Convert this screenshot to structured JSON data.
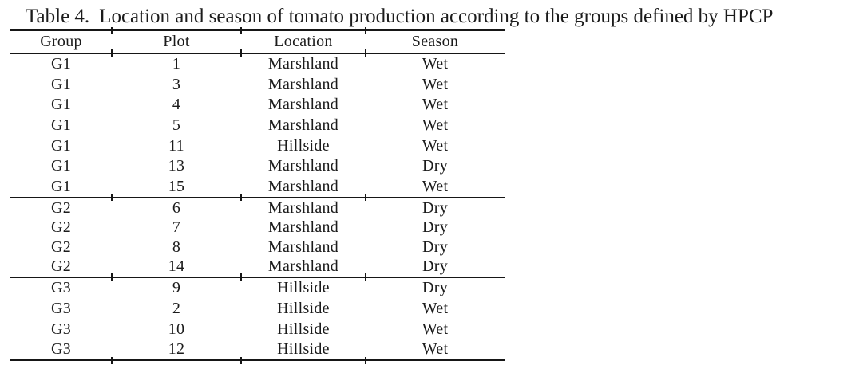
{
  "caption": {
    "label": "Table 4.",
    "text": "Location and season of tomato production according to the groups defined by HPCP"
  },
  "table": {
    "columns": [
      "Group",
      "Plot",
      "Location",
      "Season"
    ],
    "rows": [
      {
        "group": "G1",
        "plot": "1",
        "location": "Marshland",
        "season": "Wet"
      },
      {
        "group": "G1",
        "plot": "3",
        "location": "Marshland",
        "season": "Wet"
      },
      {
        "group": "G1",
        "plot": "4",
        "location": "Marshland",
        "season": "Wet"
      },
      {
        "group": "G1",
        "plot": "5",
        "location": "Marshland",
        "season": "Wet"
      },
      {
        "group": "G1",
        "plot": "11",
        "location": "Hillside",
        "season": "Wet"
      },
      {
        "group": "G1",
        "plot": "13",
        "location": "Marshland",
        "season": "Dry"
      },
      {
        "group": "G1",
        "plot": "15",
        "location": "Marshland",
        "season": "Wet"
      },
      {
        "group": "G2",
        "plot": "6",
        "location": "Marshland",
        "season": "Dry"
      },
      {
        "group": "G2",
        "plot": "7",
        "location": "Marshland",
        "season": "Dry"
      },
      {
        "group": "G2",
        "plot": "8",
        "location": "Marshland",
        "season": "Dry"
      },
      {
        "group": "G2",
        "plot": "14",
        "location": "Marshland",
        "season": "Dry"
      },
      {
        "group": "G3",
        "plot": "9",
        "location": "Hillside",
        "season": "Dry"
      },
      {
        "group": "G3",
        "plot": "2",
        "location": "Hillside",
        "season": "Wet"
      },
      {
        "group": "G3",
        "plot": "10",
        "location": "Hillside",
        "season": "Wet"
      },
      {
        "group": "G3",
        "plot": "12",
        "location": "Hillside",
        "season": "Wet"
      }
    ],
    "colors": {
      "text": "#1b1b1b",
      "rule": "#161616",
      "background": "#ffffff"
    }
  }
}
